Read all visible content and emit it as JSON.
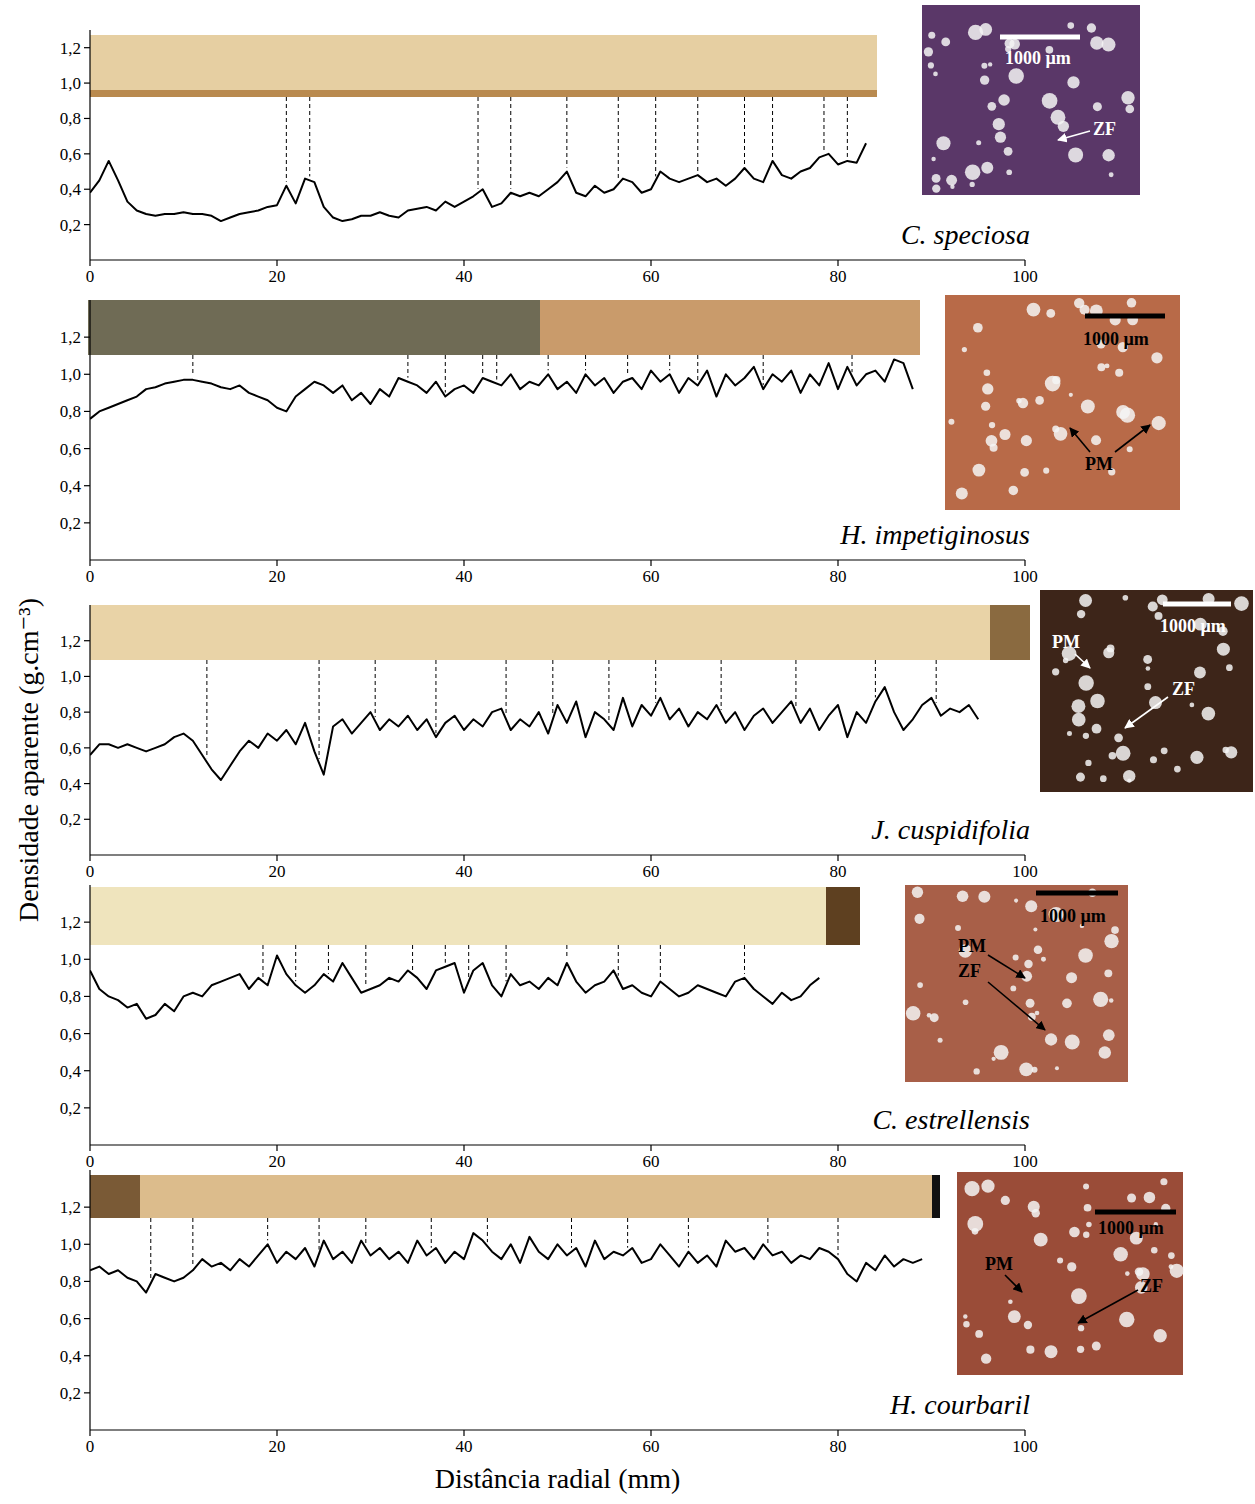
{
  "axis_labels": {
    "ylabel": "Densidade aparente (g.cm⁻³)",
    "xlabel": "Distância radial (mm)"
  },
  "chart_data": [
    {
      "type": "line",
      "title": "C. speciosa",
      "color": "#000000",
      "xlim": [
        0,
        100
      ],
      "xticks": [
        0,
        20,
        40,
        60,
        80,
        100
      ],
      "ylim": [
        0,
        1.3
      ],
      "yticks": [
        {
          "value": 0.2,
          "label": "0,2"
        },
        {
          "value": 0.4,
          "label": "0,4"
        },
        {
          "value": 0.6,
          "label": "0,6"
        },
        {
          "value": 0.8,
          "label": "0,8"
        },
        {
          "value": 1.0,
          "label": "1,0"
        },
        {
          "value": 1.2,
          "label": "1,2"
        }
      ],
      "x": [
        0,
        1,
        2,
        3,
        4,
        5,
        6,
        7,
        8,
        9,
        10,
        11,
        12,
        13,
        14,
        15,
        16,
        17,
        18,
        19,
        20,
        21,
        22,
        23,
        24,
        25,
        26,
        27,
        28,
        29,
        30,
        31,
        32,
        33,
        34,
        35,
        36,
        37,
        38,
        39,
        40,
        41,
        42,
        43,
        44,
        45,
        46,
        47,
        48,
        49,
        50,
        51,
        52,
        53,
        54,
        55,
        56,
        57,
        58,
        59,
        60,
        61,
        62,
        63,
        64,
        65,
        66,
        67,
        68,
        69,
        70,
        71,
        72,
        73,
        74,
        75,
        76,
        77,
        78,
        79,
        80,
        81,
        82,
        83
      ],
      "values": [
        0.38,
        0.45,
        0.56,
        0.45,
        0.33,
        0.28,
        0.26,
        0.25,
        0.26,
        0.26,
        0.27,
        0.26,
        0.26,
        0.25,
        0.22,
        0.24,
        0.26,
        0.27,
        0.28,
        0.3,
        0.31,
        0.42,
        0.32,
        0.46,
        0.44,
        0.3,
        0.24,
        0.22,
        0.23,
        0.25,
        0.25,
        0.27,
        0.25,
        0.24,
        0.28,
        0.29,
        0.3,
        0.28,
        0.33,
        0.3,
        0.33,
        0.36,
        0.4,
        0.3,
        0.32,
        0.38,
        0.36,
        0.38,
        0.36,
        0.4,
        0.44,
        0.5,
        0.38,
        0.36,
        0.42,
        0.38,
        0.4,
        0.46,
        0.44,
        0.38,
        0.4,
        0.5,
        0.46,
        0.44,
        0.46,
        0.48,
        0.44,
        0.46,
        0.42,
        0.46,
        0.52,
        0.46,
        0.44,
        0.56,
        0.48,
        0.46,
        0.5,
        0.52,
        0.58,
        0.6,
        0.54,
        0.56,
        0.55,
        0.66
      ],
      "ring_boundaries": [
        21,
        23.5,
        41.5,
        45,
        51,
        56.5,
        60.5,
        65,
        70,
        73,
        78.5,
        81
      ],
      "micrograph": {
        "scale_bar": "1000 µm",
        "labels": [
          "ZF"
        ]
      }
    },
    {
      "type": "line",
      "title": "H. impetiginosus",
      "color": "#000000",
      "xlim": [
        0,
        100
      ],
      "xticks": [
        0,
        20,
        40,
        60,
        80,
        100
      ],
      "ylim": [
        0,
        1.4
      ],
      "yticks": [
        {
          "value": 0.2,
          "label": "0,2"
        },
        {
          "value": 0.4,
          "label": "0,4"
        },
        {
          "value": 0.6,
          "label": "0,6"
        },
        {
          "value": 0.8,
          "label": "0,8"
        },
        {
          "value": 1.0,
          "label": "1,0"
        },
        {
          "value": 1.2,
          "label": "1,2"
        }
      ],
      "x": [
        0,
        1,
        2,
        3,
        4,
        5,
        6,
        7,
        8,
        9,
        10,
        11,
        12,
        13,
        14,
        15,
        16,
        17,
        18,
        19,
        20,
        21,
        22,
        23,
        24,
        25,
        26,
        27,
        28,
        29,
        30,
        31,
        32,
        33,
        34,
        35,
        36,
        37,
        38,
        39,
        40,
        41,
        42,
        43,
        44,
        45,
        46,
        47,
        48,
        49,
        50,
        51,
        52,
        53,
        54,
        55,
        56,
        57,
        58,
        59,
        60,
        61,
        62,
        63,
        64,
        65,
        66,
        67,
        68,
        69,
        70,
        71,
        72,
        73,
        74,
        75,
        76,
        77,
        78,
        79,
        80,
        81,
        82,
        83,
        84,
        85,
        86,
        87,
        88
      ],
      "values": [
        0.76,
        0.8,
        0.82,
        0.84,
        0.86,
        0.88,
        0.92,
        0.93,
        0.95,
        0.96,
        0.97,
        0.97,
        0.96,
        0.95,
        0.93,
        0.92,
        0.94,
        0.9,
        0.88,
        0.86,
        0.82,
        0.8,
        0.88,
        0.92,
        0.96,
        0.94,
        0.9,
        0.94,
        0.86,
        0.9,
        0.84,
        0.92,
        0.88,
        0.98,
        0.96,
        0.94,
        0.9,
        0.96,
        0.88,
        0.92,
        0.94,
        0.9,
        0.98,
        0.96,
        0.94,
        1.0,
        0.92,
        0.96,
        0.94,
        1.0,
        0.92,
        0.96,
        0.9,
        1.0,
        0.94,
        0.98,
        0.9,
        0.96,
        0.98,
        0.92,
        1.02,
        0.96,
        1.0,
        0.9,
        0.98,
        0.94,
        1.02,
        0.88,
        1.0,
        0.94,
        0.98,
        1.04,
        0.92,
        1.0,
        0.96,
        1.02,
        0.9,
        1.0,
        0.94,
        1.06,
        0.92,
        1.04,
        0.94,
        1.0,
        1.02,
        0.96,
        1.08,
        1.06,
        0.92
      ],
      "ring_boundaries": [
        11,
        34,
        38,
        42,
        43.5,
        49,
        53,
        57.5,
        62,
        65,
        72,
        81.5
      ],
      "micrograph": {
        "scale_bar": "1000 µm",
        "labels": [
          "PM"
        ]
      }
    },
    {
      "type": "line",
      "title": "J. cuspidifolia",
      "color": "#000000",
      "xlim": [
        0,
        100
      ],
      "xticks": [
        0,
        20,
        40,
        60,
        80,
        100
      ],
      "ylim": [
        0,
        1.4
      ],
      "yticks": [
        {
          "value": 0.2,
          "label": "0,2"
        },
        {
          "value": 0.4,
          "label": "0,4"
        },
        {
          "value": 0.6,
          "label": "0,6"
        },
        {
          "value": 0.8,
          "label": "0,8"
        },
        {
          "value": 1.0,
          "label": "1,0"
        },
        {
          "value": 1.2,
          "label": "1,2"
        }
      ],
      "x": [
        0,
        1,
        2,
        3,
        4,
        5,
        6,
        7,
        8,
        9,
        10,
        11,
        12,
        13,
        14,
        15,
        16,
        17,
        18,
        19,
        20,
        21,
        22,
        23,
        24,
        25,
        26,
        27,
        28,
        29,
        30,
        31,
        32,
        33,
        34,
        35,
        36,
        37,
        38,
        39,
        40,
        41,
        42,
        43,
        44,
        45,
        46,
        47,
        48,
        49,
        50,
        51,
        52,
        53,
        54,
        55,
        56,
        57,
        58,
        59,
        60,
        61,
        62,
        63,
        64,
        65,
        66,
        67,
        68,
        69,
        70,
        71,
        72,
        73,
        74,
        75,
        76,
        77,
        78,
        79,
        80,
        81,
        82,
        83,
        84,
        85,
        86,
        87,
        88,
        89,
        90,
        91,
        92,
        93,
        94,
        95
      ],
      "values": [
        0.56,
        0.62,
        0.62,
        0.6,
        0.62,
        0.6,
        0.58,
        0.6,
        0.62,
        0.66,
        0.68,
        0.64,
        0.56,
        0.48,
        0.42,
        0.5,
        0.58,
        0.64,
        0.6,
        0.68,
        0.64,
        0.7,
        0.62,
        0.74,
        0.58,
        0.45,
        0.72,
        0.76,
        0.68,
        0.74,
        0.8,
        0.7,
        0.76,
        0.72,
        0.78,
        0.7,
        0.76,
        0.66,
        0.74,
        0.78,
        0.7,
        0.76,
        0.72,
        0.8,
        0.82,
        0.7,
        0.76,
        0.72,
        0.8,
        0.68,
        0.84,
        0.74,
        0.86,
        0.66,
        0.8,
        0.76,
        0.7,
        0.88,
        0.72,
        0.84,
        0.78,
        0.88,
        0.76,
        0.82,
        0.72,
        0.8,
        0.76,
        0.84,
        0.74,
        0.8,
        0.7,
        0.78,
        0.82,
        0.74,
        0.8,
        0.86,
        0.74,
        0.82,
        0.7,
        0.78,
        0.84,
        0.66,
        0.8,
        0.74,
        0.86,
        0.94,
        0.8,
        0.7,
        0.76,
        0.84,
        0.88,
        0.78,
        0.82,
        0.8,
        0.84,
        0.76
      ],
      "ring_boundaries": [
        12.5,
        24.5,
        30.5,
        37,
        44.5,
        49.5,
        55.5,
        60.5,
        67.5,
        75.5,
        84,
        90.5
      ],
      "micrograph": {
        "scale_bar": "1000 µm",
        "labels": [
          "PM",
          "ZF"
        ]
      }
    },
    {
      "type": "line",
      "title": "C. estrellensis",
      "color": "#000000",
      "xlim": [
        0,
        100
      ],
      "xticks": [
        0,
        20,
        40,
        60,
        80,
        100
      ],
      "ylim": [
        0,
        1.4
      ],
      "yticks": [
        {
          "value": 0.2,
          "label": "0,2"
        },
        {
          "value": 0.4,
          "label": "0,4"
        },
        {
          "value": 0.6,
          "label": "0,6"
        },
        {
          "value": 0.8,
          "label": "0,8"
        },
        {
          "value": 1.0,
          "label": "1,0"
        },
        {
          "value": 1.2,
          "label": "1,2"
        }
      ],
      "x": [
        0,
        1,
        2,
        3,
        4,
        5,
        6,
        7,
        8,
        9,
        10,
        11,
        12,
        13,
        14,
        15,
        16,
        17,
        18,
        19,
        20,
        21,
        22,
        23,
        24,
        25,
        26,
        27,
        28,
        29,
        30,
        31,
        32,
        33,
        34,
        35,
        36,
        37,
        38,
        39,
        40,
        41,
        42,
        43,
        44,
        45,
        46,
        47,
        48,
        49,
        50,
        51,
        52,
        53,
        54,
        55,
        56,
        57,
        58,
        59,
        60,
        61,
        62,
        63,
        64,
        65,
        66,
        67,
        68,
        69,
        70,
        71,
        72,
        73,
        74,
        75,
        76,
        77,
        78
      ],
      "values": [
        0.94,
        0.84,
        0.8,
        0.78,
        0.74,
        0.76,
        0.68,
        0.7,
        0.76,
        0.72,
        0.8,
        0.82,
        0.8,
        0.86,
        0.88,
        0.9,
        0.92,
        0.84,
        0.9,
        0.86,
        1.02,
        0.92,
        0.86,
        0.82,
        0.86,
        0.92,
        0.88,
        0.98,
        0.9,
        0.82,
        0.84,
        0.86,
        0.9,
        0.88,
        0.94,
        0.9,
        0.84,
        0.94,
        0.96,
        0.98,
        0.82,
        0.94,
        0.98,
        0.86,
        0.8,
        0.92,
        0.86,
        0.88,
        0.84,
        0.9,
        0.86,
        0.98,
        0.88,
        0.82,
        0.86,
        0.88,
        0.94,
        0.84,
        0.86,
        0.82,
        0.8,
        0.88,
        0.84,
        0.8,
        0.82,
        0.86,
        0.84,
        0.82,
        0.8,
        0.88,
        0.9,
        0.84,
        0.8,
        0.76,
        0.82,
        0.78,
        0.8,
        0.86,
        0.9
      ],
      "ring_boundaries": [
        18.5,
        22,
        25.5,
        29.5,
        34.5,
        38,
        40.5,
        44.5,
        51,
        56.5,
        61,
        70
      ],
      "micrograph": {
        "scale_bar": "1000 µm",
        "labels": [
          "PM",
          "ZF"
        ]
      }
    },
    {
      "type": "line",
      "title": "H. courbaril",
      "color": "#000000",
      "xlim": [
        0,
        100
      ],
      "xticks": [
        0,
        20,
        40,
        60,
        80,
        100
      ],
      "ylim": [
        0,
        1.4
      ],
      "yticks": [
        {
          "value": 0.2,
          "label": "0,2"
        },
        {
          "value": 0.4,
          "label": "0,4"
        },
        {
          "value": 0.6,
          "label": "0,6"
        },
        {
          "value": 0.8,
          "label": "0,8"
        },
        {
          "value": 1.0,
          "label": "1,0"
        },
        {
          "value": 1.2,
          "label": "1,2"
        }
      ],
      "x": [
        0,
        1,
        2,
        3,
        4,
        5,
        6,
        7,
        8,
        9,
        10,
        11,
        12,
        13,
        14,
        15,
        16,
        17,
        18,
        19,
        20,
        21,
        22,
        23,
        24,
        25,
        26,
        27,
        28,
        29,
        30,
        31,
        32,
        33,
        34,
        35,
        36,
        37,
        38,
        39,
        40,
        41,
        42,
        43,
        44,
        45,
        46,
        47,
        48,
        49,
        50,
        51,
        52,
        53,
        54,
        55,
        56,
        57,
        58,
        59,
        60,
        61,
        62,
        63,
        64,
        65,
        66,
        67,
        68,
        69,
        70,
        71,
        72,
        73,
        74,
        75,
        76,
        77,
        78,
        79,
        80,
        81,
        82,
        83,
        84,
        85,
        86,
        87,
        88,
        89
      ],
      "values": [
        0.86,
        0.88,
        0.84,
        0.86,
        0.82,
        0.8,
        0.74,
        0.84,
        0.82,
        0.8,
        0.82,
        0.86,
        0.92,
        0.88,
        0.9,
        0.86,
        0.92,
        0.88,
        0.94,
        1.0,
        0.9,
        0.96,
        0.92,
        0.98,
        0.88,
        1.02,
        0.92,
        0.96,
        0.9,
        1.02,
        0.94,
        0.98,
        0.92,
        0.96,
        0.9,
        1.02,
        0.94,
        0.98,
        0.9,
        0.96,
        0.92,
        1.06,
        1.02,
        0.96,
        0.92,
        1.0,
        0.9,
        1.04,
        0.96,
        0.92,
        1.0,
        0.94,
        0.98,
        0.88,
        1.02,
        0.92,
        0.96,
        0.94,
        0.98,
        0.9,
        0.92,
        1.0,
        0.94,
        0.88,
        0.96,
        0.9,
        0.94,
        0.88,
        1.02,
        0.96,
        0.98,
        0.92,
        1.0,
        0.94,
        0.96,
        0.9,
        0.94,
        0.92,
        0.98,
        0.96,
        0.92,
        0.84,
        0.8,
        0.9,
        0.86,
        0.94,
        0.88,
        0.92,
        0.9,
        0.92
      ],
      "ring_boundaries": [
        6.5,
        11,
        19,
        24.5,
        29.5,
        36.5,
        42.5,
        51.5,
        57.5,
        64,
        72.5,
        80
      ],
      "micrograph": {
        "scale_bar": "1000 µm",
        "labels": [
          "PM",
          "ZF"
        ]
      }
    }
  ]
}
